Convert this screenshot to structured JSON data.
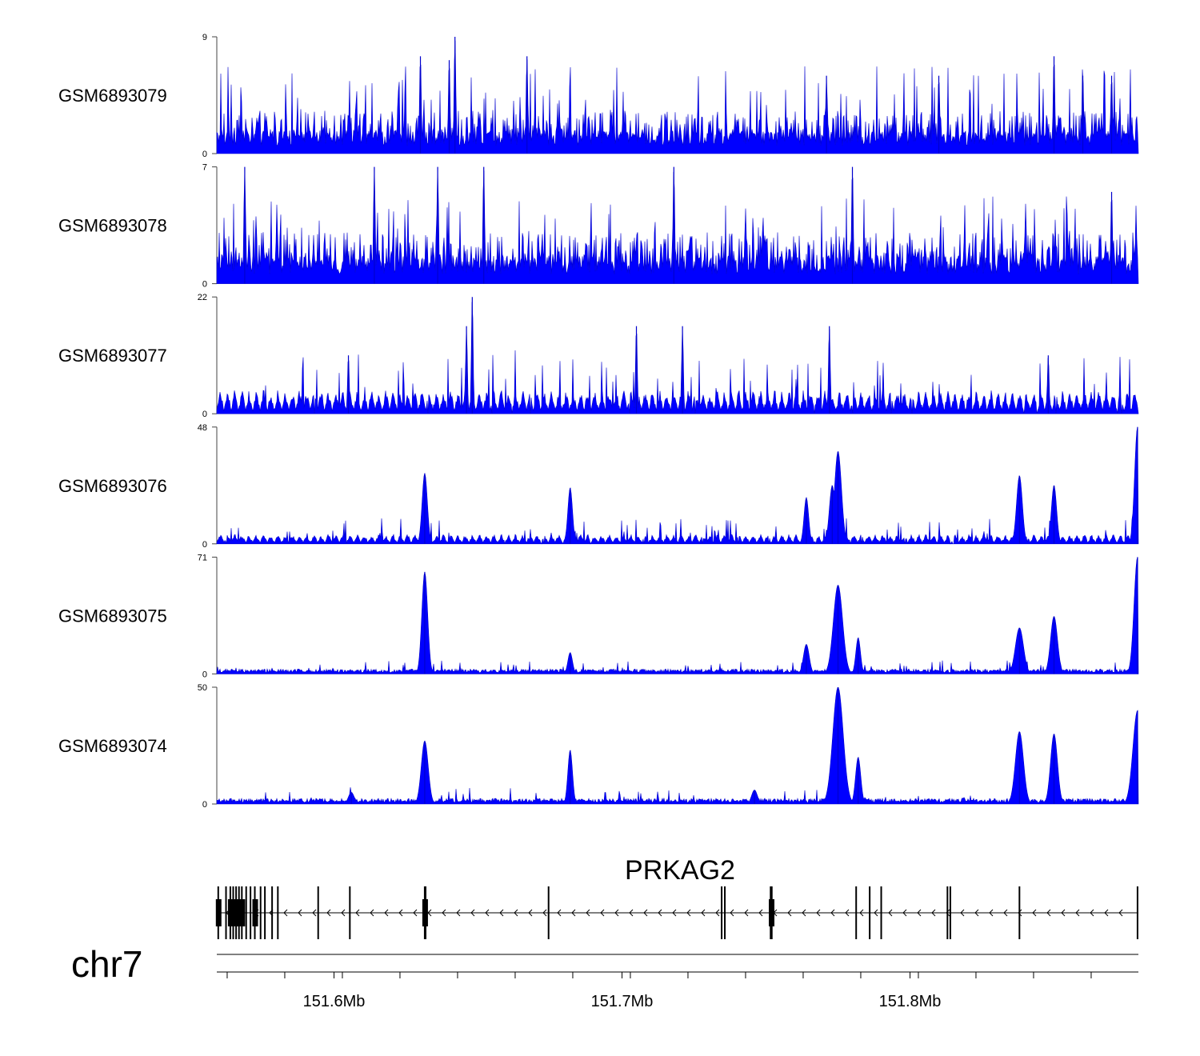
{
  "chart_data": {
    "type": "area",
    "title": "",
    "chromosome": "chr7",
    "region_mb": [
      151.5593,
      151.8793
    ],
    "series_color": "#0000CD",
    "fill_color": "#0000FF",
    "tracks": [
      {
        "name": "GSM6893079",
        "ylim": [
          0,
          9
        ],
        "ytick_labels": [
          "0",
          "9"
        ],
        "profile": "uniform_noise",
        "baseline": 1.5,
        "peaks": [
          {
            "pos_mb": 151.642,
            "value": 9.0,
            "width_mb": 0.0003
          },
          {
            "pos_mb": 151.63,
            "value": 7.5,
            "width_mb": 0.0003
          },
          {
            "pos_mb": 151.64,
            "value": 7.2,
            "width_mb": 0.0003
          },
          {
            "pos_mb": 151.667,
            "value": 7.5,
            "width_mb": 0.0003
          },
          {
            "pos_mb": 151.85,
            "value": 7.5,
            "width_mb": 0.0003
          },
          {
            "pos_mb": 151.81,
            "value": 6.0,
            "width_mb": 0.0003
          },
          {
            "pos_mb": 151.86,
            "value": 6.0,
            "width_mb": 0.0003
          },
          {
            "pos_mb": 151.87,
            "value": 6.0,
            "width_mb": 0.0003
          },
          {
            "pos_mb": 151.771,
            "value": 6.0,
            "width_mb": 0.0003
          }
        ]
      },
      {
        "name": "GSM6893078",
        "ylim": [
          0,
          7
        ],
        "ytick_labels": [
          "0",
          "7"
        ],
        "profile": "uniform_noise",
        "baseline": 1.4,
        "peaks": [
          {
            "pos_mb": 151.569,
            "value": 7.0,
            "width_mb": 0.0003
          },
          {
            "pos_mb": 151.614,
            "value": 7.0,
            "width_mb": 0.0003
          },
          {
            "pos_mb": 151.636,
            "value": 7.0,
            "width_mb": 0.0003
          },
          {
            "pos_mb": 151.718,
            "value": 7.0,
            "width_mb": 0.0003
          },
          {
            "pos_mb": 151.78,
            "value": 7.0,
            "width_mb": 0.0003
          },
          {
            "pos_mb": 151.652,
            "value": 7.0,
            "width_mb": 0.0003
          },
          {
            "pos_mb": 151.87,
            "value": 5.5,
            "width_mb": 0.0003
          }
        ]
      },
      {
        "name": "GSM6893077",
        "ylim": [
          0,
          22
        ],
        "ytick_labels": [
          "0",
          "22"
        ],
        "profile": "gapped_noise",
        "baseline": 4.0,
        "peaks": [
          {
            "pos_mb": 151.648,
            "value": 22.0,
            "width_mb": 0.0003
          },
          {
            "pos_mb": 151.646,
            "value": 16.5,
            "width_mb": 0.0003
          },
          {
            "pos_mb": 151.705,
            "value": 16.5,
            "width_mb": 0.0003
          },
          {
            "pos_mb": 151.772,
            "value": 16.5,
            "width_mb": 0.0003
          },
          {
            "pos_mb": 151.721,
            "value": 16.5,
            "width_mb": 0.0003
          },
          {
            "pos_mb": 151.605,
            "value": 11.0,
            "width_mb": 0.0003
          },
          {
            "pos_mb": 151.848,
            "value": 11.0,
            "width_mb": 0.0003
          }
        ]
      },
      {
        "name": "GSM6893076",
        "ylim": [
          0,
          48
        ],
        "ytick_labels": [
          "0",
          "48"
        ],
        "profile": "gapped_noise",
        "baseline": 3.5,
        "peaks": [
          {
            "pos_mb": 151.6315,
            "value": 29.0,
            "width_mb": 0.0009
          },
          {
            "pos_mb": 151.682,
            "value": 23.0,
            "width_mb": 0.0008
          },
          {
            "pos_mb": 151.775,
            "value": 38.0,
            "width_mb": 0.0012
          },
          {
            "pos_mb": 151.773,
            "value": 24.0,
            "width_mb": 0.001
          },
          {
            "pos_mb": 151.764,
            "value": 19.0,
            "width_mb": 0.0008
          },
          {
            "pos_mb": 151.838,
            "value": 28.0,
            "width_mb": 0.001
          },
          {
            "pos_mb": 151.85,
            "value": 24.0,
            "width_mb": 0.0009
          },
          {
            "pos_mb": 151.879,
            "value": 48.0,
            "width_mb": 0.001
          }
        ]
      },
      {
        "name": "GSM6893075",
        "ylim": [
          0,
          71
        ],
        "ytick_labels": [
          "0",
          "71"
        ],
        "profile": "smooth",
        "baseline": 2.5,
        "peaks": [
          {
            "pos_mb": 151.6315,
            "value": 62.0,
            "width_mb": 0.001
          },
          {
            "pos_mb": 151.682,
            "value": 13.0,
            "width_mb": 0.0008
          },
          {
            "pos_mb": 151.775,
            "value": 54.0,
            "width_mb": 0.0016
          },
          {
            "pos_mb": 151.764,
            "value": 18.0,
            "width_mb": 0.001
          },
          {
            "pos_mb": 151.782,
            "value": 22.0,
            "width_mb": 0.0008
          },
          {
            "pos_mb": 151.838,
            "value": 28.0,
            "width_mb": 0.0014
          },
          {
            "pos_mb": 151.85,
            "value": 35.0,
            "width_mb": 0.0012
          },
          {
            "pos_mb": 151.879,
            "value": 71.0,
            "width_mb": 0.0012
          }
        ]
      },
      {
        "name": "GSM6893074",
        "ylim": [
          0,
          50
        ],
        "ytick_labels": [
          "0",
          "50"
        ],
        "profile": "smooth",
        "baseline": 2.0,
        "peaks": [
          {
            "pos_mb": 151.6315,
            "value": 27.0,
            "width_mb": 0.0012
          },
          {
            "pos_mb": 151.682,
            "value": 23.0,
            "width_mb": 0.0008
          },
          {
            "pos_mb": 151.775,
            "value": 50.0,
            "width_mb": 0.0018
          },
          {
            "pos_mb": 151.782,
            "value": 20.0,
            "width_mb": 0.0009
          },
          {
            "pos_mb": 151.838,
            "value": 31.0,
            "width_mb": 0.0014
          },
          {
            "pos_mb": 151.85,
            "value": 30.0,
            "width_mb": 0.0012
          },
          {
            "pos_mb": 151.879,
            "value": 40.0,
            "width_mb": 0.0016
          },
          {
            "pos_mb": 151.746,
            "value": 6.0,
            "width_mb": 0.001
          },
          {
            "pos_mb": 151.606,
            "value": 5.0,
            "width_mb": 0.001
          }
        ]
      }
    ],
    "gene": {
      "name": "PRKAG2",
      "strand": "-",
      "start_mb": 151.5593,
      "end_mb": 151.8793,
      "exons_mb": [
        151.5598,
        151.5625,
        151.564,
        151.565,
        151.566,
        151.567,
        151.568,
        151.5695,
        151.571,
        151.5725,
        151.5745,
        151.576,
        151.5785,
        151.5805,
        151.5945,
        151.6055,
        151.6315,
        151.6318,
        151.6745,
        151.7346,
        151.7357,
        151.7516,
        151.752,
        151.7813,
        151.786,
        151.79,
        151.813,
        151.814,
        151.838,
        151.879
      ],
      "thick_exons_mb": [
        151.5598,
        151.564,
        151.566,
        151.568,
        151.5725,
        151.6315,
        151.7518
      ]
    },
    "xaxis": {
      "chromosome": "chr7",
      "major_ticks_mb": [
        151.6,
        151.7,
        151.8
      ],
      "major_tick_labels": [
        "151.6Mb",
        "151.7Mb",
        "151.8Mb"
      ],
      "minor_tick_step_mb": 0.02,
      "minor_tick_start_mb": 151.5629
    }
  }
}
